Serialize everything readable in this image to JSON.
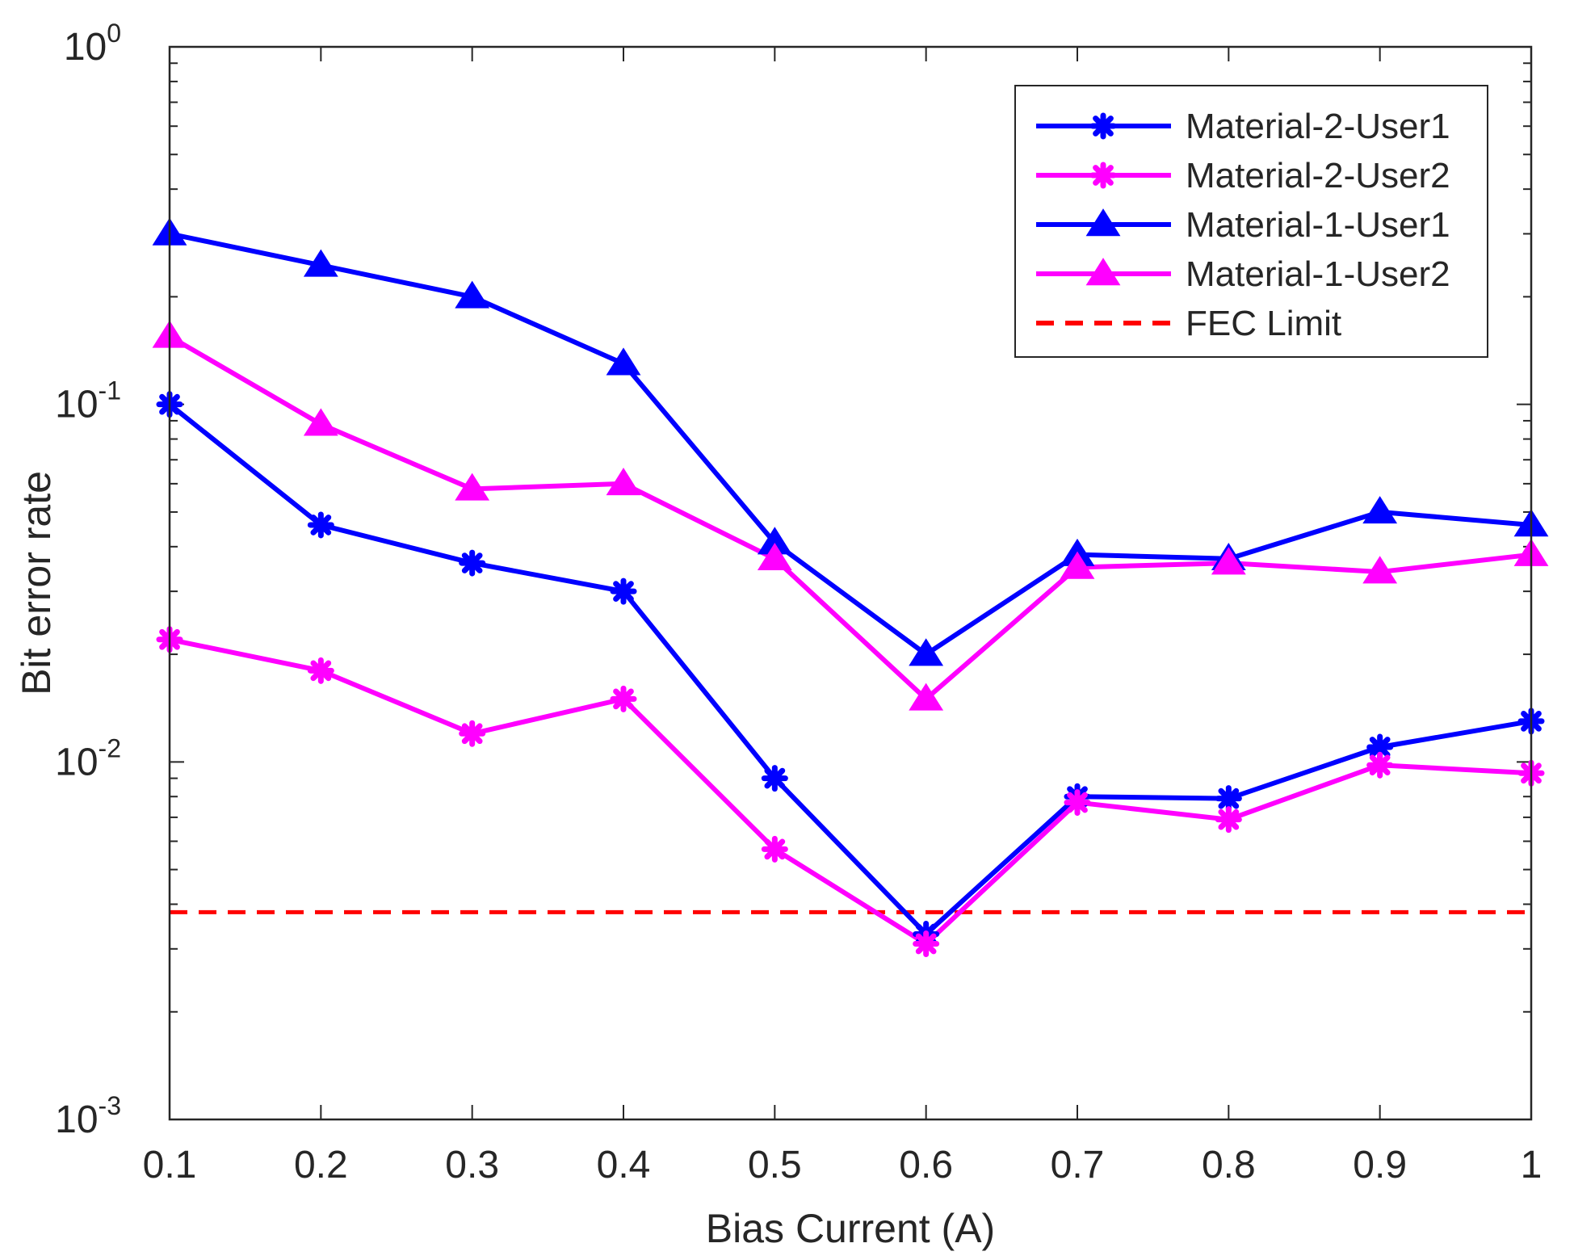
{
  "chart_data": {
    "type": "line",
    "yscale": "log",
    "xlabel": "Bias Current (A)",
    "ylabel": "Bit error rate",
    "xlim": [
      0.1,
      1.0
    ],
    "ylim": [
      0.001,
      1
    ],
    "x": [
      0.1,
      0.2,
      0.3,
      0.4,
      0.5,
      0.6,
      0.7,
      0.8,
      0.9,
      1.0
    ],
    "x_tick_labels": [
      "0.1",
      "0.2",
      "0.3",
      "0.4",
      "0.5",
      "0.6",
      "0.7",
      "0.8",
      "0.9",
      "1"
    ],
    "y_ticks": [
      {
        "value": 1,
        "base": "10",
        "exp": "0"
      },
      {
        "value": 0.1,
        "base": "10",
        "exp": "-1"
      },
      {
        "value": 0.01,
        "base": "10",
        "exp": "-2"
      },
      {
        "value": 0.001,
        "base": "10",
        "exp": "-3"
      }
    ],
    "legend_position": "top-right",
    "series": [
      {
        "name": "Material-2-User1",
        "color": "#0000ff",
        "marker": "asterisk",
        "values": [
          0.1,
          0.046,
          0.036,
          0.03,
          0.009,
          0.0033,
          0.008,
          0.0079,
          0.011,
          0.013
        ]
      },
      {
        "name": "Material-2-User2",
        "color": "#ff00ff",
        "marker": "asterisk",
        "values": [
          0.022,
          0.018,
          0.012,
          0.015,
          0.0057,
          0.0031,
          0.0077,
          0.0069,
          0.0098,
          0.0093
        ]
      },
      {
        "name": "Material-1-User1",
        "color": "#0000ff",
        "marker": "triangle",
        "values": [
          0.3,
          0.245,
          0.2,
          0.13,
          0.041,
          0.02,
          0.038,
          0.037,
          0.05,
          0.046
        ]
      },
      {
        "name": "Material-1-User2",
        "color": "#ff00ff",
        "marker": "triangle",
        "values": [
          0.155,
          0.088,
          0.058,
          0.06,
          0.037,
          0.015,
          0.035,
          0.036,
          0.034,
          0.038
        ]
      }
    ],
    "reference_lines": [
      {
        "name": "FEC Limit",
        "color": "#ff0000",
        "style": "dashed",
        "value": 0.0038
      }
    ]
  }
}
